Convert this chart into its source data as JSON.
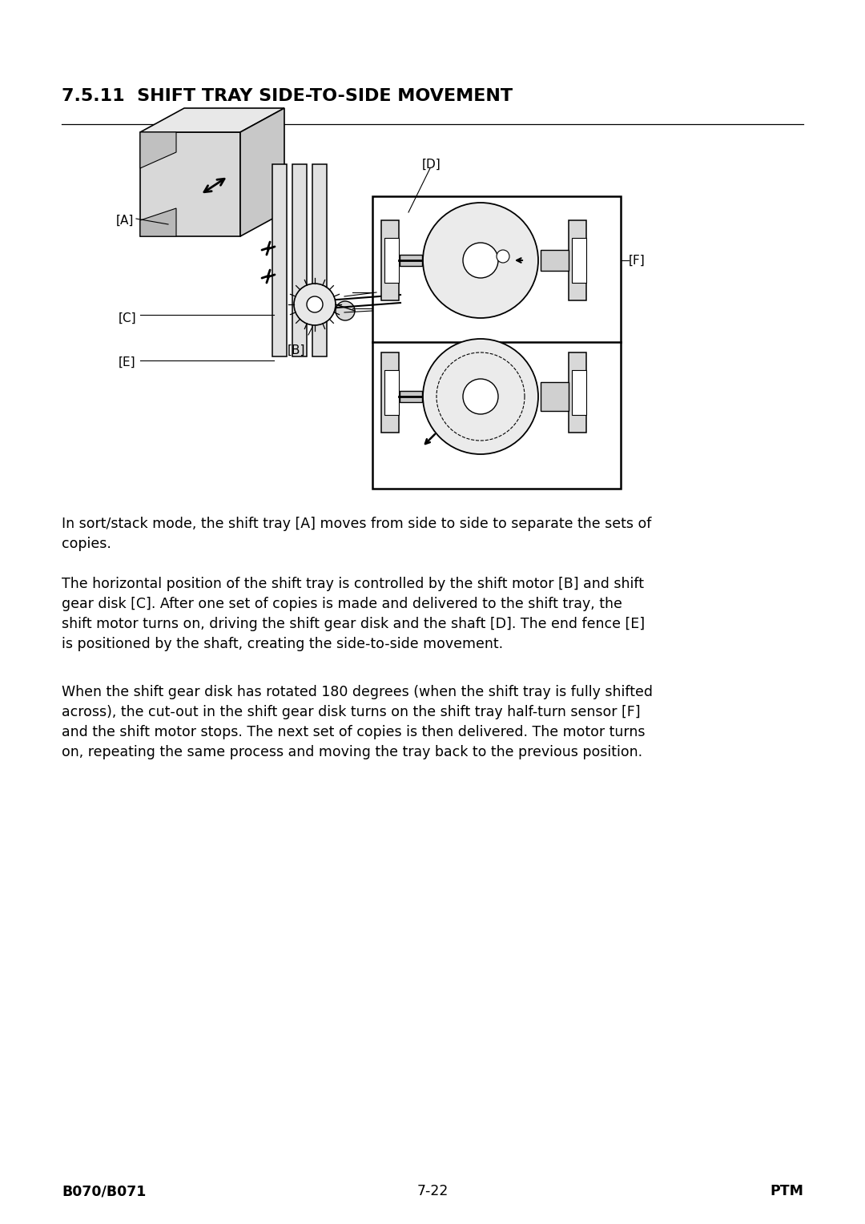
{
  "bg_color": "#ffffff",
  "title": "7.5.11  SHIFT TRAY SIDE-TO-SIDE MOVEMENT",
  "title_fontsize": 16,
  "title_fontweight": "bold",
  "para1": "In sort/stack mode, the shift tray [A] moves from side to side to separate the sets of\ncopies.",
  "para2": "The horizontal position of the shift tray is controlled by the shift motor [B] and shift\ngear disk [C]. After one set of copies is made and delivered to the shift tray, the\nshift motor turns on, driving the shift gear disk and the shaft [D]. The end fence [E]\nis positioned by the shaft, creating the side-to-side movement.",
  "para3": "When the shift gear disk has rotated 180 degrees (when the shift tray is fully shifted\nacross), the cut-out in the shift gear disk turns on the shift tray half-turn sensor [F]\nand the shift motor stops. The next set of copies is then delivered. The motor turns\non, repeating the same process and moving the tray back to the previous position.",
  "footer_left": "B070/B071",
  "footer_center": "7-22",
  "footer_right": "PTM",
  "body_fontsize": 12.5,
  "footer_fontsize": 12.5,
  "label_fontsize": 11
}
